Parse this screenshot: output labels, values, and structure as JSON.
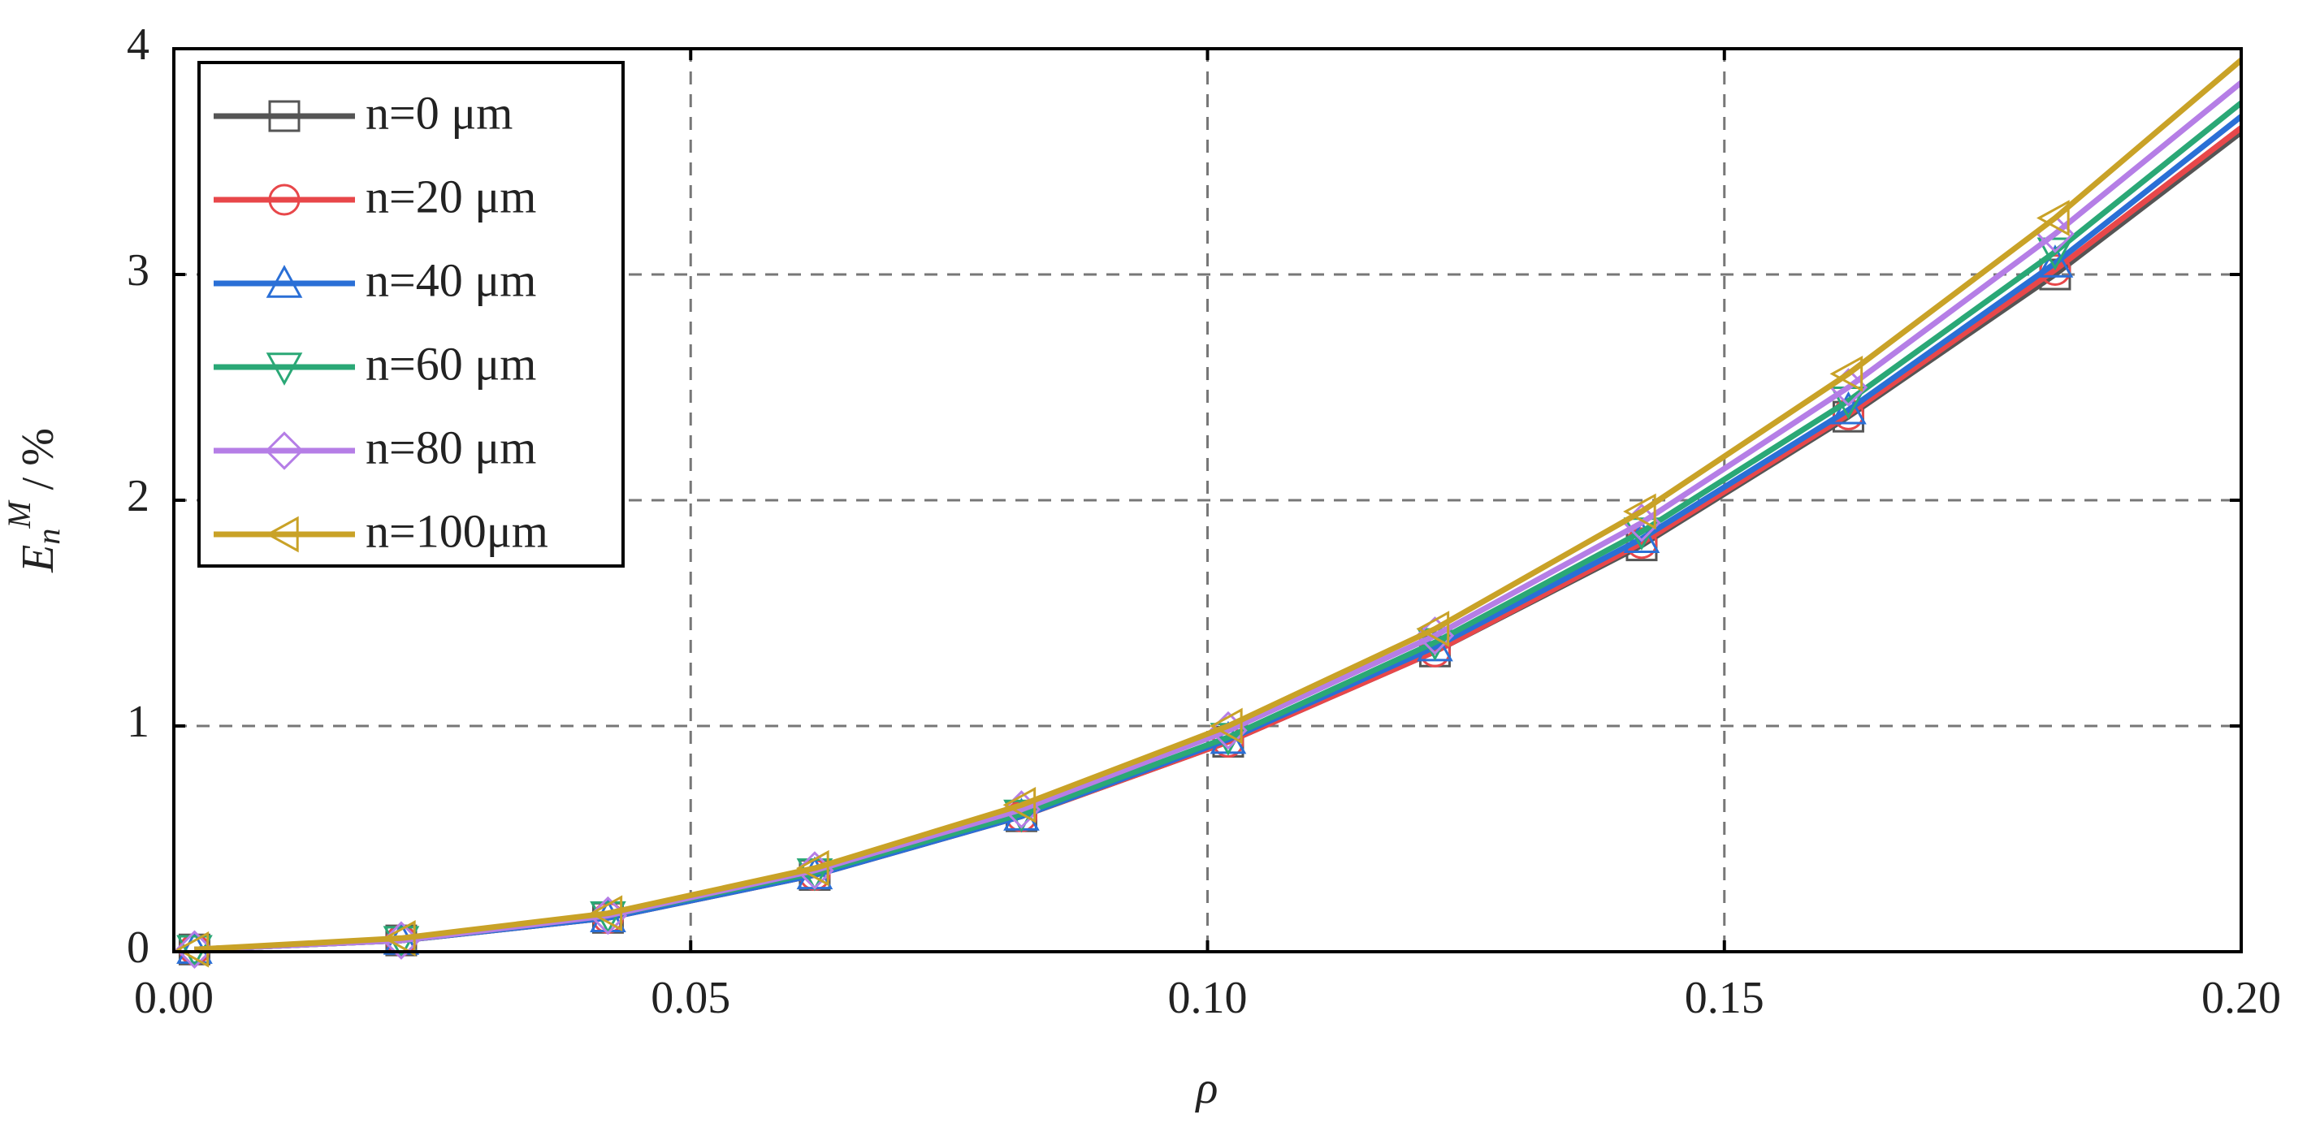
{
  "chart_data": {
    "type": "line",
    "xlabel": "ρ",
    "ylabel": {
      "base": "E",
      "sub": "n",
      "sup": "M",
      "unit": " / %"
    },
    "x": [
      0.002,
      0.022,
      0.042,
      0.062,
      0.082,
      0.102,
      0.122,
      0.142,
      0.162,
      0.182,
      0.2
    ],
    "series": [
      {
        "name": "n=0   μm",
        "color": "#555555",
        "marker": "square",
        "values": [
          0.01,
          0.05,
          0.15,
          0.34,
          0.6,
          0.93,
          1.33,
          1.8,
          2.37,
          3.0,
          3.63
        ]
      },
      {
        "name": "n=20 μm",
        "color": "#e8474a",
        "marker": "circle",
        "values": [
          0.01,
          0.05,
          0.15,
          0.34,
          0.6,
          0.93,
          1.33,
          1.81,
          2.38,
          3.02,
          3.65
        ]
      },
      {
        "name": "n=40 μm",
        "color": "#2a6fd6",
        "marker": "triangle-up",
        "values": [
          0.01,
          0.05,
          0.15,
          0.34,
          0.6,
          0.94,
          1.35,
          1.83,
          2.4,
          3.05,
          3.7
        ]
      },
      {
        "name": "n=60 μm",
        "color": "#2aa876",
        "marker": "triangle-down",
        "values": [
          0.01,
          0.05,
          0.16,
          0.35,
          0.61,
          0.95,
          1.37,
          1.86,
          2.44,
          3.1,
          3.76
        ]
      },
      {
        "name": "n=80 μm",
        "color": "#b57ee6",
        "marker": "diamond",
        "values": [
          0.01,
          0.05,
          0.16,
          0.36,
          0.63,
          0.98,
          1.4,
          1.9,
          2.5,
          3.18,
          3.85
        ]
      },
      {
        "name": "n=100μm",
        "color": "#c9a227",
        "marker": "triangle-left",
        "values": [
          0.01,
          0.06,
          0.17,
          0.37,
          0.65,
          1.0,
          1.43,
          1.95,
          2.56,
          3.25,
          3.95
        ]
      }
    ],
    "xlim": [
      0,
      0.2
    ],
    "ylim": [
      0,
      4
    ],
    "xticks": [
      {
        "value": 0,
        "label": "0.00"
      },
      0.05,
      {
        "value": 0.1,
        "label": "0.10"
      },
      0.15,
      {
        "value": 0.2,
        "label": "0.20"
      }
    ],
    "yticks": [
      0,
      1,
      2,
      3,
      4
    ],
    "grid": true,
    "legend": "upper left"
  }
}
